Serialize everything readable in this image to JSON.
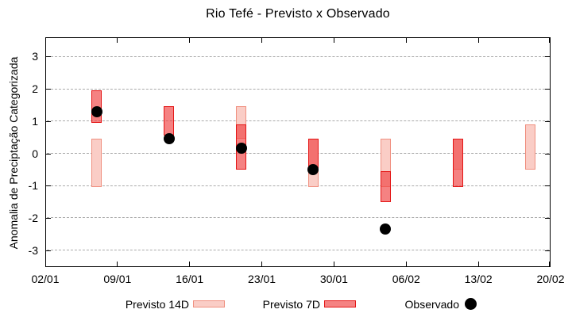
{
  "title": "Rio Tefé - Previsto x Observado",
  "y_axis": {
    "label": "Anomalia de Preciptação Categorizada"
  },
  "legend": {
    "items": [
      {
        "label": "Previsto 14D",
        "swatch": "box-light"
      },
      {
        "label": "Previsto 7D",
        "swatch": "box-dark"
      },
      {
        "label": "Observado",
        "swatch": "dot"
      }
    ]
  },
  "chart_data": {
    "type": "bar",
    "subtype": "floating-range-boxes-with-observation-points",
    "title": "Rio Tefé - Previsto x Observado",
    "xlabel": "",
    "ylabel": "Anomalia de Preciptação Categorizada",
    "ylim": [
      -3.6,
      3.6
    ],
    "y_ticks": [
      3,
      2,
      1,
      0,
      -1,
      -2,
      -3
    ],
    "x_tick_labels": [
      "02/01",
      "09/01",
      "16/01",
      "23/01",
      "30/01",
      "06/02",
      "13/02",
      "20/02"
    ],
    "x_span_days": 49,
    "grid": "horizontal-dashed",
    "legend_position": "below",
    "series_names": [
      "Previsto 14D",
      "Previsto 7D",
      "Observado"
    ],
    "clusters": [
      {
        "date": "07/01",
        "day": 5,
        "previsto_14d": [
          -1.05,
          0.45
        ],
        "previsto_7d": [
          0.95,
          1.95
        ],
        "observado": 1.3
      },
      {
        "date": "14/01",
        "day": 12,
        "previsto_14d": null,
        "previsto_7d": [
          0.55,
          1.45
        ],
        "observado": 0.45
      },
      {
        "date": "21/01",
        "day": 19,
        "previsto_14d": [
          0.45,
          1.45
        ],
        "previsto_7d": [
          -0.5,
          0.9
        ],
        "observado": 0.15
      },
      {
        "date": "28/01",
        "day": 26,
        "previsto_14d": [
          -1.05,
          0.45
        ],
        "previsto_7d": [
          -0.45,
          0.45
        ],
        "observado": -0.5
      },
      {
        "date": "04/02",
        "day": 33,
        "previsto_14d": [
          -1.05,
          0.45
        ],
        "previsto_7d": [
          -1.5,
          -0.55
        ],
        "observado": -2.35
      },
      {
        "date": "11/02",
        "day": 40,
        "previsto_14d": [
          -0.5,
          0.45
        ],
        "previsto_7d": [
          -1.05,
          0.45
        ],
        "observado": null
      },
      {
        "date": "18/02",
        "day": 47,
        "previsto_14d": [
          -0.5,
          0.9
        ],
        "previsto_7d": null,
        "observado": null
      }
    ],
    "colors": {
      "previsto_14d_fill": "#facdc6",
      "previsto_14d_border": "#f09080",
      "previsto_7d_fill": "rgba(240,65,65,0.66)",
      "previsto_7d_border": "#e41515",
      "observado": "#000000",
      "grid": "#aaaaaa",
      "frame": "#000000"
    }
  }
}
